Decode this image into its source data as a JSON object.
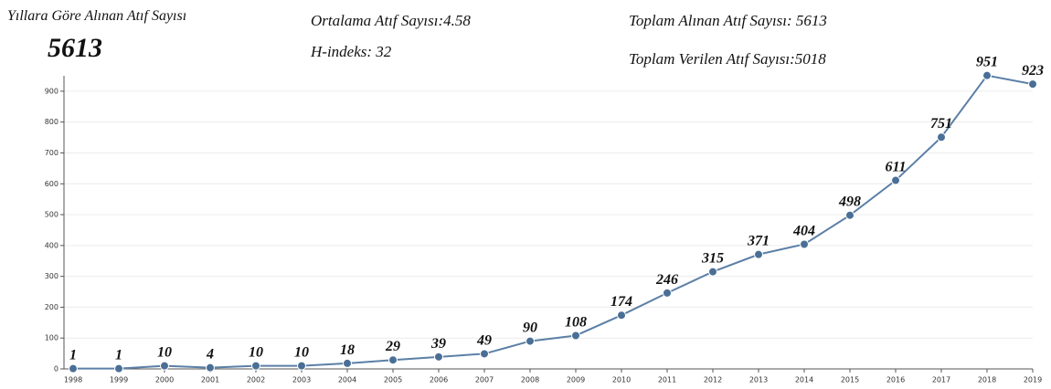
{
  "chart_data": {
    "type": "line",
    "title": "Yıllara Göre Alınan Atıf Sayısı",
    "annotations": [
      "5613",
      "Ortalama Atıf Sayısı:4.58",
      "H-indeks: 32",
      "Toplam Alınan Atıf Sayısı: 5613",
      "Toplam Verilen Atıf Sayısı:5018"
    ],
    "categories": [
      "1998",
      "1999",
      "2000",
      "2001",
      "2002",
      "2003",
      "2004",
      "2005",
      "2006",
      "2007",
      "2008",
      "2009",
      "2010",
      "2011",
      "2012",
      "2013",
      "2014",
      "2015",
      "2016",
      "2017",
      "2018",
      "2019"
    ],
    "series": [
      {
        "name": "Atıf",
        "color": "#5b7fa6",
        "values": [
          1,
          1,
          10,
          4,
          10,
          10,
          18,
          29,
          39,
          49,
          90,
          108,
          174,
          246,
          315,
          371,
          404,
          498,
          611,
          751,
          951,
          923
        ]
      }
    ],
    "ylim": [
      0,
      950
    ],
    "yticks": [
      0,
      100,
      200,
      300,
      400,
      500,
      600,
      700,
      800,
      900
    ],
    "grid": true
  }
}
